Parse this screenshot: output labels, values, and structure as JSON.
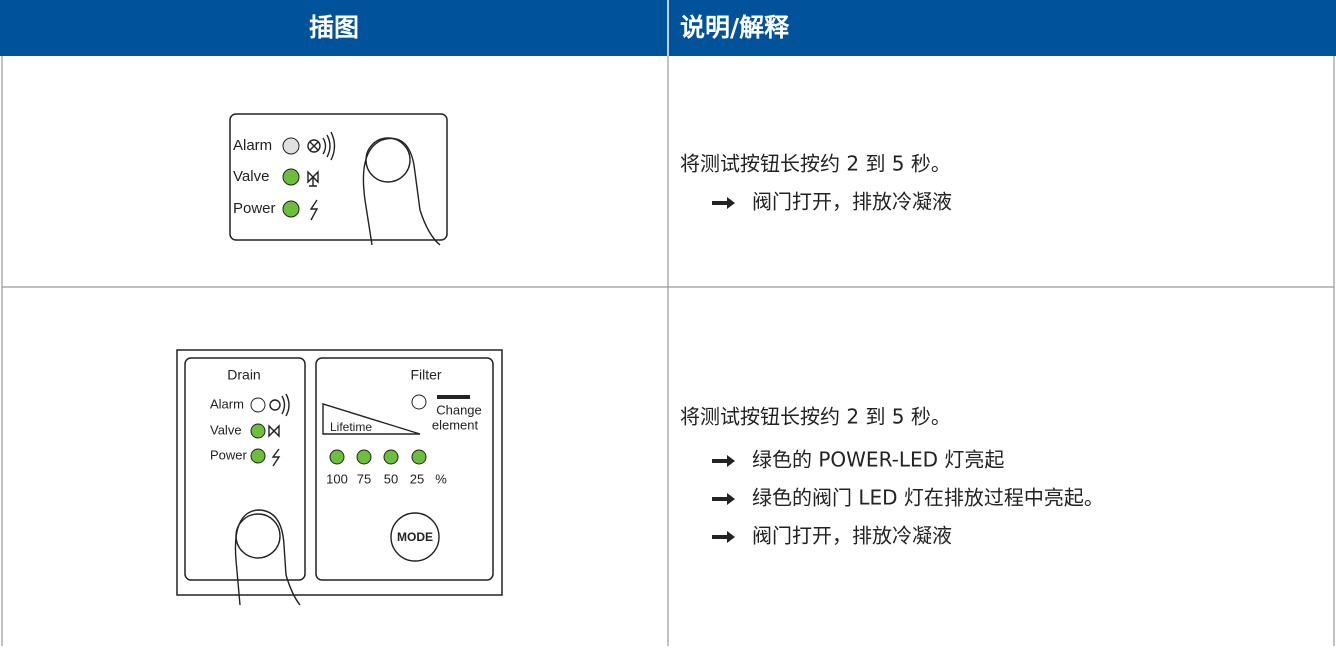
{
  "table": {
    "header": [
      "插图",
      "说明/解释"
    ],
    "rows": [
      {
        "illustration": {
          "labels": [
            "Alarm",
            "Valve",
            "Power"
          ]
        },
        "text": "将测试按钮长按约 2 到 5 秒。",
        "steps": [
          "阀门打开，排放冷凝液"
        ]
      },
      {
        "illustration": {
          "drain_title": "Drain",
          "labels": [
            "Alarm",
            "Valve",
            "Power"
          ],
          "filter_title": "Filter",
          "change": [
            "Change",
            "element"
          ],
          "lifetime": "Lifetime",
          "scale": [
            "100",
            "75",
            "50",
            "25",
            "%"
          ],
          "mode": "MODE"
        },
        "text": "将测试按钮长按约 2 到 5 秒。",
        "steps": [
          "绿色的 POWER-LED 灯亮起",
          "绿色的阀门 LED 灯在排放过程中亮起。",
          "阀门打开，排放冷凝液"
        ]
      }
    ]
  }
}
